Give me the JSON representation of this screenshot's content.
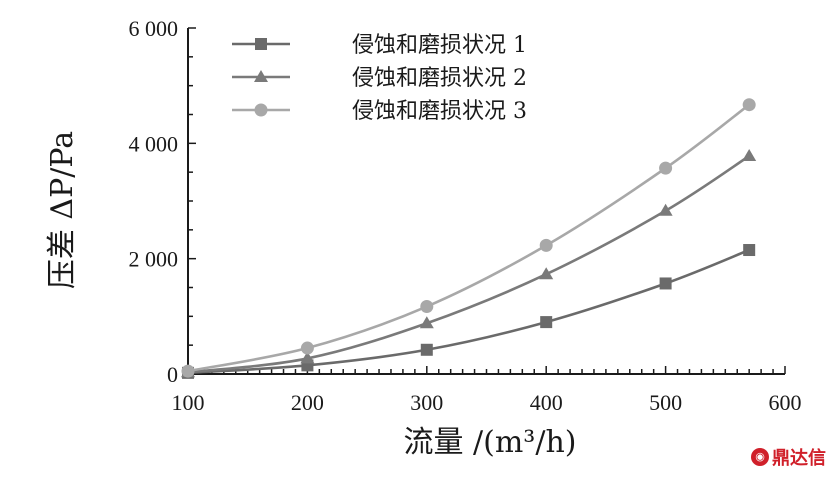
{
  "chart_data": {
    "type": "line",
    "x": [
      100,
      200,
      300,
      400,
      500,
      570
    ],
    "xlim": [
      100,
      600
    ],
    "ylim": [
      0,
      6000
    ],
    "x_ticks": [
      100,
      200,
      300,
      400,
      500,
      600
    ],
    "x_tick_labels": [
      "100",
      "200",
      "300",
      "400",
      "500",
      "600"
    ],
    "y_ticks": [
      0,
      2000,
      4000,
      6000
    ],
    "y_tick_labels": [
      "0",
      "2 000",
      "4 000",
      "6 000"
    ],
    "xlabel": "流量 /(m³/h)",
    "ylabel": "压差 ΔP/Pa",
    "grid": false,
    "legend_position": "top-left",
    "series": [
      {
        "name": "侵蚀和磨损状况 1",
        "marker": "square",
        "color": "#6a6a6a",
        "values": [
          20,
          150,
          420,
          900,
          1570,
          2150
        ]
      },
      {
        "name": "侵蚀和磨损状况 2",
        "marker": "triangle",
        "color": "#7a7a7a",
        "values": [
          30,
          270,
          880,
          1730,
          2830,
          3780
        ]
      },
      {
        "name": "侵蚀和磨损状况 3",
        "marker": "circle",
        "color": "#a8a8a8",
        "values": [
          50,
          450,
          1170,
          2230,
          3570,
          4670
        ]
      }
    ]
  },
  "watermark": {
    "text": "鼎达信"
  }
}
